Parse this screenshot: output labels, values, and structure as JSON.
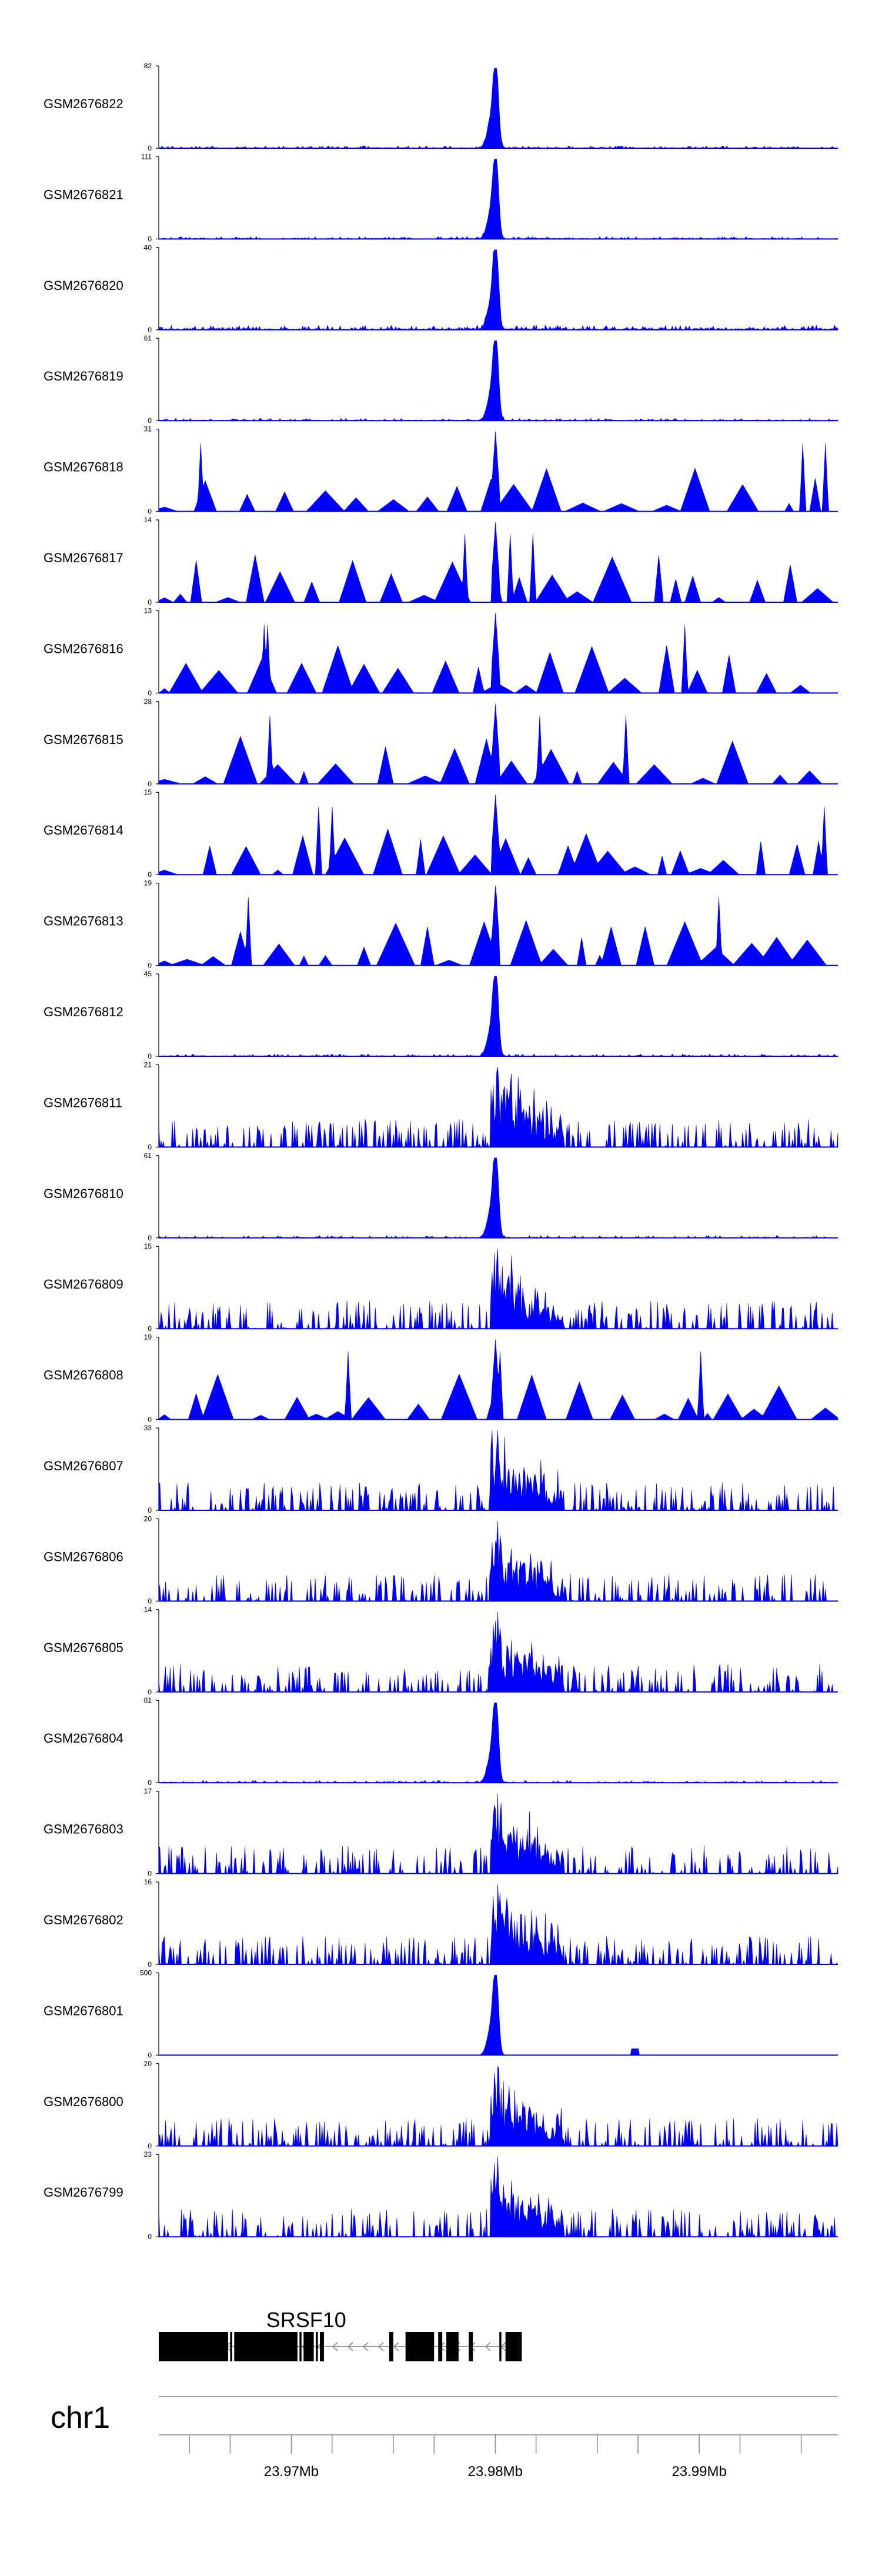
{
  "chart_data": {
    "type": "area",
    "title": "",
    "xlabel": "",
    "ylabel": "",
    "chromosome": "chr1",
    "region_start_mb": 23.9635,
    "region_end_mb": 23.9968,
    "color": "#0000ff",
    "peak_center_mb": 23.98,
    "x_ticks": [
      {
        "value": 23.965,
        "label": ""
      },
      {
        "value": 23.967,
        "label": ""
      },
      {
        "value": 23.97,
        "label": "23.97Mb"
      },
      {
        "value": 23.972,
        "label": ""
      },
      {
        "value": 23.975,
        "label": ""
      },
      {
        "value": 23.977,
        "label": ""
      },
      {
        "value": 23.98,
        "label": "23.98Mb"
      },
      {
        "value": 23.982,
        "label": ""
      },
      {
        "value": 23.985,
        "label": ""
      },
      {
        "value": 23.987,
        "label": ""
      },
      {
        "value": 23.99,
        "label": "23.99Mb"
      },
      {
        "value": 23.992,
        "label": ""
      },
      {
        "value": 23.995,
        "label": ""
      }
    ],
    "series": [
      {
        "name": "GSM2676822",
        "ymax": 82,
        "ymin": 0,
        "pattern": "sharp"
      },
      {
        "name": "GSM2676821",
        "ymax": 111,
        "ymin": 0,
        "pattern": "sharp"
      },
      {
        "name": "GSM2676820",
        "ymax": 40,
        "ymin": 0,
        "pattern": "sharp_bg"
      },
      {
        "name": "GSM2676819",
        "ymax": 61,
        "ymin": 0,
        "pattern": "sharp"
      },
      {
        "name": "GSM2676818",
        "ymax": 31,
        "ymin": 0,
        "pattern": "sparse"
      },
      {
        "name": "GSM2676817",
        "ymax": 14,
        "ymin": 0,
        "pattern": "sparse"
      },
      {
        "name": "GSM2676816",
        "ymax": 13,
        "ymin": 0,
        "pattern": "sparse"
      },
      {
        "name": "GSM2676815",
        "ymax": 28,
        "ymin": 0,
        "pattern": "sparse"
      },
      {
        "name": "GSM2676814",
        "ymax": 15,
        "ymin": 0,
        "pattern": "sparse"
      },
      {
        "name": "GSM2676813",
        "ymax": 19,
        "ymin": 0,
        "pattern": "sparse"
      },
      {
        "name": "GSM2676812",
        "ymax": 45,
        "ymin": 0,
        "pattern": "sharp"
      },
      {
        "name": "GSM2676811",
        "ymax": 21,
        "ymin": 0,
        "pattern": "broad"
      },
      {
        "name": "GSM2676810",
        "ymax": 61,
        "ymin": 0,
        "pattern": "sharp"
      },
      {
        "name": "GSM2676809",
        "ymax": 15,
        "ymin": 0,
        "pattern": "broad"
      },
      {
        "name": "GSM2676808",
        "ymax": 19,
        "ymin": 0,
        "pattern": "sparse"
      },
      {
        "name": "GSM2676807",
        "ymax": 33,
        "ymin": 0,
        "pattern": "broad"
      },
      {
        "name": "GSM2676806",
        "ymax": 20,
        "ymin": 0,
        "pattern": "broad"
      },
      {
        "name": "GSM2676805",
        "ymax": 14,
        "ymin": 0,
        "pattern": "broad"
      },
      {
        "name": "GSM2676804",
        "ymax": 81,
        "ymin": 0,
        "pattern": "sharp"
      },
      {
        "name": "GSM2676803",
        "ymax": 17,
        "ymin": 0,
        "pattern": "broad"
      },
      {
        "name": "GSM2676802",
        "ymax": 16,
        "ymin": 0,
        "pattern": "broad"
      },
      {
        "name": "GSM2676801",
        "ymax": 500,
        "ymin": 0,
        "pattern": "sharp_only"
      },
      {
        "name": "GSM2676800",
        "ymax": 20,
        "ymin": 0,
        "pattern": "broad"
      },
      {
        "name": "GSM2676799",
        "ymax": 23,
        "ymin": 0,
        "pattern": "broad"
      }
    ],
    "gene": {
      "name": "SRSF10",
      "strand": "-",
      "start_mb": 23.9635,
      "end_mb": 23.981,
      "exons_mb": [
        [
          23.9635,
          23.9669
        ],
        [
          23.967,
          23.9671
        ],
        [
          23.9672,
          23.9703
        ],
        [
          23.9704,
          23.9705
        ],
        [
          23.9706,
          23.9711
        ],
        [
          23.9712,
          23.9713
        ],
        [
          23.9714,
          23.9716
        ],
        [
          23.9748,
          23.975
        ],
        [
          23.9756,
          23.977
        ],
        [
          23.9772,
          23.9774
        ],
        [
          23.9776,
          23.9782
        ],
        [
          23.9787,
          23.9789
        ],
        [
          23.9802,
          23.9803
        ],
        [
          23.9805,
          23.9813
        ]
      ]
    }
  }
}
